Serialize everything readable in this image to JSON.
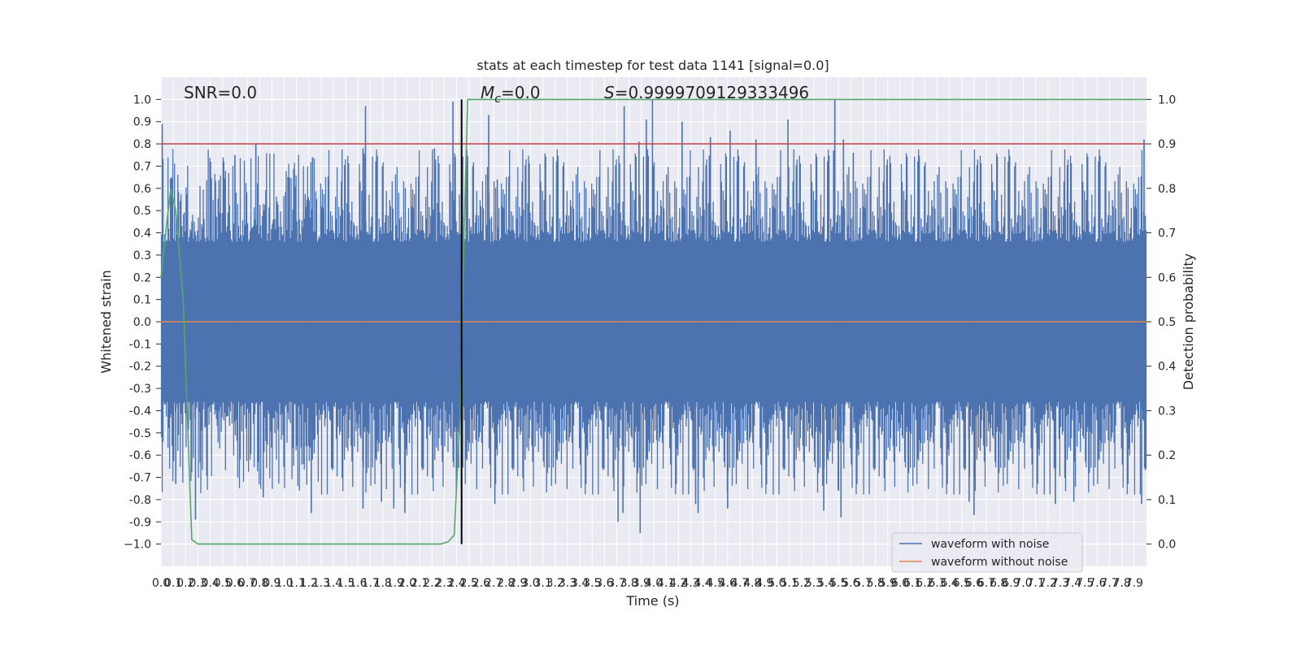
{
  "chart_data": {
    "type": "line",
    "title": "stats at each timestep for test data 1141 [signal=0.0]",
    "xlabel": "Time (s)",
    "ylabel": "Whitened strain",
    "y2label": "Detection probability",
    "xlim": [
      0.0,
      8.0
    ],
    "ylim": [
      -1.1,
      1.1
    ],
    "y2lim": [
      -0.05,
      1.05
    ],
    "grid": true,
    "x_ticks": [
      "0.0",
      "0.1",
      "0.2",
      "0.3",
      "0.4",
      "0.5",
      "0.6",
      "0.7",
      "0.8",
      "0.9",
      "1.0",
      "1.1",
      "1.2",
      "1.3",
      "1.4",
      "1.5",
      "1.6",
      "1.7",
      "1.8",
      "1.9",
      "2.0",
      "2.1",
      "2.2",
      "2.3",
      "2.4",
      "2.5",
      "2.6",
      "2.7",
      "2.8",
      "2.9",
      "3.0",
      "3.1",
      "3.2",
      "3.3",
      "3.4",
      "3.5",
      "3.6",
      "3.7",
      "3.8",
      "3.9",
      "4.0",
      "4.1",
      "4.2",
      "4.3",
      "4.4",
      "4.5",
      "4.6",
      "4.7",
      "4.8",
      "4.9",
      "5.0",
      "5.1",
      "5.2",
      "5.3",
      "5.4",
      "5.5",
      "5.6",
      "5.7",
      "5.8",
      "5.9",
      "6.0",
      "6.1",
      "6.2",
      "6.3",
      "6.4",
      "6.5",
      "6.6",
      "6.7",
      "6.8",
      "6.9",
      "7.0",
      "7.1",
      "7.2",
      "7.3",
      "7.4",
      "7.5",
      "7.6",
      "7.7",
      "7.8",
      "7.9"
    ],
    "y_ticks": [
      "1.0",
      "0.9",
      "0.8",
      "0.7",
      "0.6",
      "0.5",
      "0.4",
      "0.3",
      "0.2",
      "0.1",
      "0.0",
      "-0.1",
      "-0.2",
      "-0.3",
      "-0.4",
      "-0.5",
      "-0.6",
      "-0.7",
      "-0.8",
      "-0.9",
      "−1.0"
    ],
    "y2_ticks": [
      "1.0",
      "0.9",
      "0.8",
      "0.7",
      "0.6",
      "0.5",
      "0.4",
      "0.3",
      "0.2",
      "0.1",
      "0.0"
    ],
    "annotations": {
      "snr": "SNR=0.0",
      "mc_symbol": "M",
      "mc_sub": "c",
      "mc_value": "=0.0",
      "s_symbol": "S",
      "s_value": "=0.9999709129333496"
    },
    "legend": {
      "placement": "lower-right",
      "entries": [
        "waveform with noise",
        "waveform without noise"
      ]
    },
    "series": [
      {
        "name": "waveform with noise",
        "axis": "left",
        "color": "#4c72b0",
        "style": "noise",
        "samples": 1200,
        "upper_base": 0.48,
        "lower_base": -0.48,
        "x": [
          0.01,
          0.6,
          0.77,
          1.23,
          1.64,
          1.66,
          2.22,
          2.37,
          2.66,
          2.73,
          3.76,
          3.88,
          3.94,
          3.99,
          4.23,
          4.46,
          4.62,
          4.83,
          5.09,
          5.46,
          5.47,
          5.54,
          5.62,
          7.98,
          1.64,
          3.89,
          3.71,
          4.36,
          5.38,
          5.52,
          7.26,
          0.28,
          1.22,
          4.34,
          4.6,
          6.6,
          7.41,
          7.96,
          0.83,
          1.98,
          2.71,
          5.5,
          0.12,
          1.79,
          1.89,
          3.75,
          6.56
        ],
        "y": [
          0.89,
          0.75,
          0.8,
          0.74,
          0.78,
          0.97,
          0.78,
          0.99,
          0.93,
          0.64,
          0.97,
          0.81,
          0.91,
          1.0,
          0.9,
          0.83,
          0.86,
          0.82,
          0.91,
          0.77,
          1.0,
          0.82,
          0.76,
          0.82,
          -0.84,
          -0.95,
          -0.9,
          -0.86,
          -0.85,
          -0.88,
          -0.82,
          -0.89,
          -0.86,
          -0.82,
          -0.84,
          -0.87,
          -0.81,
          -0.82,
          -0.79,
          -0.86,
          -0.82,
          -0.76,
          -0.73,
          -0.81,
          -0.84,
          -0.86,
          -0.81
        ]
      },
      {
        "name": "waveform without noise",
        "axis": "left",
        "color": "#dd8452",
        "x": [
          0.0,
          8.0
        ],
        "y": [
          0.0,
          0.0
        ]
      },
      {
        "name": "detection probability",
        "axis": "right",
        "color": "#55a868",
        "x": [
          0.0,
          0.05,
          0.08,
          0.12,
          0.18,
          0.25,
          0.3,
          0.45,
          1.0,
          1.5,
          2.0,
          2.27,
          2.33,
          2.38,
          2.43,
          2.46,
          2.49,
          8.0
        ],
        "y": [
          0.6,
          0.73,
          0.8,
          0.75,
          0.55,
          0.01,
          0.0,
          0.0,
          0.0,
          0.0,
          0.0,
          0.0,
          0.005,
          0.02,
          0.3,
          0.7,
          1.0,
          1.0
        ]
      },
      {
        "name": "threshold",
        "axis": "right",
        "color": "#c44e52",
        "x": [
          0.0,
          8.0
        ],
        "y": [
          0.9,
          0.9
        ]
      },
      {
        "name": "event time",
        "axis": "right",
        "color": "#000000",
        "x": [
          2.44,
          2.44
        ],
        "y": [
          0.0,
          1.0
        ]
      }
    ]
  }
}
